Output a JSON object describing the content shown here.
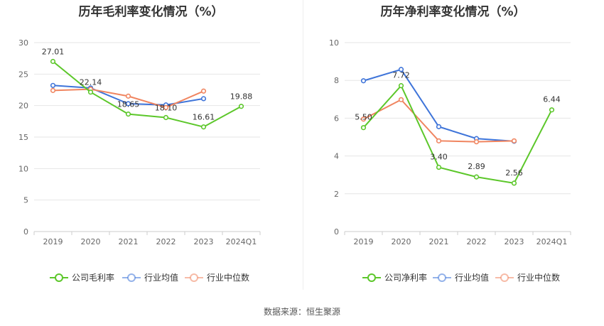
{
  "source": "数据来源：恒生聚源",
  "chart_data": [
    {
      "type": "line",
      "title": "历年毛利率变化情况（%）",
      "categories": [
        "2019",
        "2020",
        "2021",
        "2022",
        "2023",
        "2024Q1"
      ],
      "ylim": [
        0,
        30
      ],
      "yticks": [
        0,
        5,
        10,
        15,
        20,
        25,
        30
      ],
      "grid": true,
      "legend_position": "bottom",
      "series": [
        {
          "name": "公司毛利率",
          "color": "#5cc72a",
          "values": [
            27.01,
            22.14,
            18.65,
            18.1,
            16.61,
            19.88
          ],
          "labels": [
            "27.01",
            "22.14",
            "18.65",
            "18.10",
            "16.61",
            "19.88"
          ]
        },
        {
          "name": "行业均值",
          "color": "#3e74d9",
          "values": [
            23.2,
            22.8,
            20.3,
            20.1,
            21.1,
            null
          ]
        },
        {
          "name": "行业中位数",
          "color": "#f08560",
          "values": [
            22.4,
            22.6,
            21.5,
            19.7,
            22.3,
            null
          ]
        }
      ]
    },
    {
      "type": "line",
      "title": "历年净利率变化情况（%）",
      "categories": [
        "2019",
        "2020",
        "2021",
        "2022",
        "2023",
        "2024Q1"
      ],
      "ylim": [
        0,
        10
      ],
      "yticks": [
        0,
        2,
        4,
        6,
        8,
        10
      ],
      "grid": true,
      "legend_position": "bottom",
      "series": [
        {
          "name": "公司净利率",
          "color": "#5cc72a",
          "values": [
            5.5,
            7.72,
            3.4,
            2.89,
            2.56,
            6.44
          ],
          "labels": [
            "5.50",
            "7.72",
            "3.40",
            "2.89",
            "2.56",
            "6.44"
          ]
        },
        {
          "name": "行业均值",
          "color": "#3e74d9",
          "values": [
            7.98,
            8.58,
            5.55,
            4.92,
            4.78,
            null
          ]
        },
        {
          "name": "行业中位数",
          "color": "#f08560",
          "values": [
            5.95,
            6.98,
            4.8,
            4.75,
            4.8,
            null
          ]
        }
      ]
    }
  ]
}
